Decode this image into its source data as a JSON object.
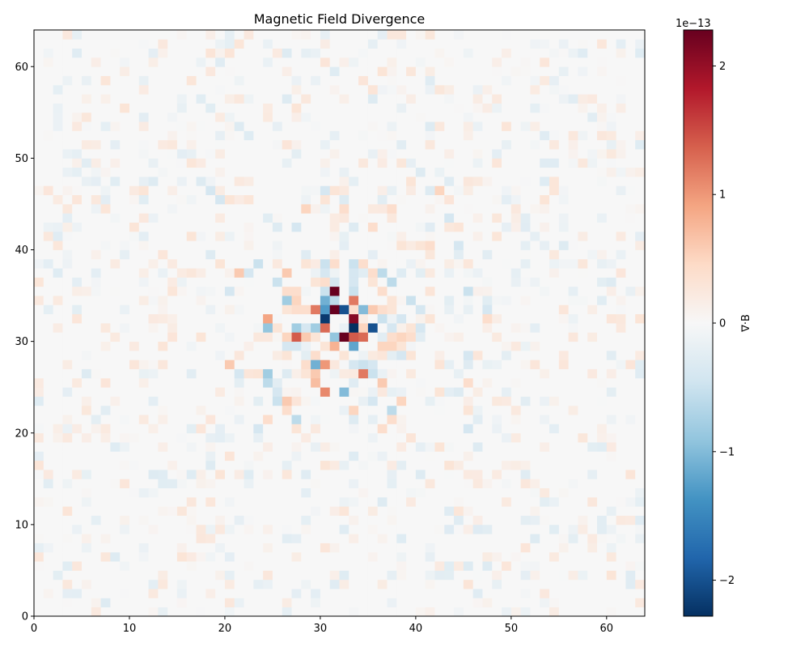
{
  "chart_data": {
    "type": "heatmap",
    "title": "Magnetic Field Divergence",
    "xlabel": "",
    "ylabel": "",
    "xlim": [
      0,
      64
    ],
    "ylim": [
      0,
      64
    ],
    "xticks": [
      0,
      10,
      20,
      30,
      40,
      50,
      60
    ],
    "yticks": [
      0,
      10,
      20,
      30,
      40,
      50,
      60
    ],
    "grid_size": [
      64,
      64
    ],
    "colormap": "RdBu_r",
    "colors": {
      "low": "#053061",
      "mid": "#f7f7f7",
      "high": "#67001f"
    },
    "colorbar": {
      "label": "∇·B",
      "offset_text": "1e−13",
      "min": -2.28,
      "max": 2.28,
      "ticks": [
        -2,
        -1,
        0,
        1,
        2
      ],
      "tick_labels": [
        "−2",
        "−1",
        "0",
        "1",
        "2"
      ],
      "scale": 1e-13
    },
    "background_noise": 0.3,
    "cells": [
      {
        "x": 31,
        "y": 35,
        "v": 2.3
      },
      {
        "x": 30,
        "y": 35,
        "v": -0.5
      },
      {
        "x": 30,
        "y": 34,
        "v": -1.1
      },
      {
        "x": 31,
        "y": 34,
        "v": -0.6
      },
      {
        "x": 30,
        "y": 33,
        "v": -1.3
      },
      {
        "x": 31,
        "y": 33,
        "v": 2.3
      },
      {
        "x": 32,
        "y": 33,
        "v": -2.0
      },
      {
        "x": 29,
        "y": 33,
        "v": 1.2
      },
      {
        "x": 28,
        "y": 33,
        "v": 0.4
      },
      {
        "x": 30,
        "y": 32,
        "v": -2.2
      },
      {
        "x": 33,
        "y": 32,
        "v": 2.1
      },
      {
        "x": 33,
        "y": 31,
        "v": -2.3
      },
      {
        "x": 30,
        "y": 31,
        "v": 1.3
      },
      {
        "x": 29,
        "y": 31,
        "v": -0.8
      },
      {
        "x": 34,
        "y": 31,
        "v": 0.5
      },
      {
        "x": 35,
        "y": 31,
        "v": -2.0
      },
      {
        "x": 32,
        "y": 30,
        "v": 2.3
      },
      {
        "x": 33,
        "y": 30,
        "v": 1.4
      },
      {
        "x": 34,
        "y": 30,
        "v": 1.3
      },
      {
        "x": 31,
        "y": 30,
        "v": -0.9
      },
      {
        "x": 33,
        "y": 29,
        "v": -1.2
      },
      {
        "x": 31,
        "y": 29,
        "v": 0.8
      },
      {
        "x": 33,
        "y": 34,
        "v": 1.2
      },
      {
        "x": 34,
        "y": 33,
        "v": -1.0
      },
      {
        "x": 35,
        "y": 33,
        "v": 0.6
      },
      {
        "x": 36,
        "y": 33,
        "v": 0.4
      },
      {
        "x": 37,
        "y": 33,
        "v": 0.3
      },
      {
        "x": 33,
        "y": 33,
        "v": 0.4
      },
      {
        "x": 33,
        "y": 35,
        "v": -0.5
      },
      {
        "x": 28,
        "y": 30,
        "v": 0.6
      },
      {
        "x": 27,
        "y": 30,
        "v": 1.4
      },
      {
        "x": 26,
        "y": 30,
        "v": 0.5
      },
      {
        "x": 27,
        "y": 31,
        "v": -0.8
      },
      {
        "x": 28,
        "y": 31,
        "v": -0.4
      },
      {
        "x": 29,
        "y": 30,
        "v": 0.3
      },
      {
        "x": 24,
        "y": 31,
        "v": -0.9
      },
      {
        "x": 25,
        "y": 31,
        "v": 0.3
      },
      {
        "x": 24,
        "y": 32,
        "v": 0.9
      },
      {
        "x": 26,
        "y": 34,
        "v": -0.8
      },
      {
        "x": 27,
        "y": 34,
        "v": 0.5
      },
      {
        "x": 26,
        "y": 35,
        "v": 0.4
      },
      {
        "x": 27,
        "y": 35,
        "v": 0.4
      },
      {
        "x": 25,
        "y": 36,
        "v": -0.5
      },
      {
        "x": 26,
        "y": 33,
        "v": 0.3
      },
      {
        "x": 27,
        "y": 33,
        "v": 0.4
      },
      {
        "x": 23,
        "y": 38,
        "v": -0.5
      },
      {
        "x": 21,
        "y": 37,
        "v": 0.6
      },
      {
        "x": 22,
        "y": 37,
        "v": -0.4
      },
      {
        "x": 26,
        "y": 37,
        "v": 0.6
      },
      {
        "x": 26,
        "y": 29,
        "v": -0.4
      },
      {
        "x": 27,
        "y": 29,
        "v": -0.4
      },
      {
        "x": 26,
        "y": 28,
        "v": 0.3
      },
      {
        "x": 29,
        "y": 28,
        "v": 0.4
      },
      {
        "x": 30,
        "y": 29,
        "v": 0.3
      },
      {
        "x": 29,
        "y": 27,
        "v": -1.1
      },
      {
        "x": 30,
        "y": 27,
        "v": 1.0
      },
      {
        "x": 28,
        "y": 27,
        "v": 0.4
      },
      {
        "x": 29,
        "y": 26,
        "v": 0.6
      },
      {
        "x": 28,
        "y": 26,
        "v": 0.3
      },
      {
        "x": 29,
        "y": 25,
        "v": 0.7
      },
      {
        "x": 30,
        "y": 24,
        "v": 1.1
      },
      {
        "x": 32,
        "y": 24,
        "v": -1.0
      },
      {
        "x": 34,
        "y": 26,
        "v": 1.2
      },
      {
        "x": 35,
        "y": 26,
        "v": -0.5
      },
      {
        "x": 34,
        "y": 27,
        "v": -0.5
      },
      {
        "x": 35,
        "y": 27,
        "v": -0.4
      },
      {
        "x": 36,
        "y": 25,
        "v": 0.6
      },
      {
        "x": 33,
        "y": 27,
        "v": -0.4
      },
      {
        "x": 32,
        "y": 28,
        "v": 0.3
      },
      {
        "x": 24,
        "y": 26,
        "v": -0.8
      },
      {
        "x": 24,
        "y": 25,
        "v": -0.6
      },
      {
        "x": 23,
        "y": 26,
        "v": 0.3
      },
      {
        "x": 25,
        "y": 24,
        "v": -0.4
      },
      {
        "x": 26,
        "y": 23,
        "v": 0.6
      },
      {
        "x": 25,
        "y": 23,
        "v": -0.5
      },
      {
        "x": 20,
        "y": 27,
        "v": 0.6
      },
      {
        "x": 21,
        "y": 26,
        "v": -0.4
      },
      {
        "x": 27,
        "y": 21,
        "v": -0.6
      },
      {
        "x": 26,
        "y": 22,
        "v": 0.4
      },
      {
        "x": 24,
        "y": 21,
        "v": 0.4
      },
      {
        "x": 23,
        "y": 20,
        "v": -0.4
      },
      {
        "x": 27,
        "y": 20,
        "v": 0.3
      },
      {
        "x": 33,
        "y": 22,
        "v": 0.5
      },
      {
        "x": 35,
        "y": 23,
        "v": -0.4
      },
      {
        "x": 37,
        "y": 22,
        "v": -0.6
      },
      {
        "x": 37,
        "y": 21,
        "v": 0.4
      },
      {
        "x": 38,
        "y": 23,
        "v": 0.5
      },
      {
        "x": 36,
        "y": 20,
        "v": 0.4
      },
      {
        "x": 33,
        "y": 21,
        "v": -0.3
      },
      {
        "x": 36,
        "y": 29,
        "v": 0.5
      },
      {
        "x": 37,
        "y": 29,
        "v": 0.5
      },
      {
        "x": 38,
        "y": 29,
        "v": 0.3
      },
      {
        "x": 37,
        "y": 30,
        "v": 0.4
      },
      {
        "x": 38,
        "y": 30,
        "v": 0.5
      },
      {
        "x": 39,
        "y": 30,
        "v": 0.4
      },
      {
        "x": 37,
        "y": 31,
        "v": -0.4
      },
      {
        "x": 36,
        "y": 32,
        "v": -0.5
      },
      {
        "x": 38,
        "y": 32,
        "v": -0.4
      },
      {
        "x": 39,
        "y": 31,
        "v": 0.3
      },
      {
        "x": 40,
        "y": 31,
        "v": -0.4
      },
      {
        "x": 40,
        "y": 33,
        "v": -0.4
      },
      {
        "x": 39,
        "y": 34,
        "v": -0.5
      },
      {
        "x": 41,
        "y": 32,
        "v": 0.3
      },
      {
        "x": 37,
        "y": 36,
        "v": -0.6
      },
      {
        "x": 36,
        "y": 37,
        "v": -0.6
      },
      {
        "x": 37,
        "y": 34,
        "v": 0.3
      },
      {
        "x": 38,
        "y": 28,
        "v": -0.4
      },
      {
        "x": 39,
        "y": 28,
        "v": 0.3
      },
      {
        "x": 35,
        "y": 37,
        "v": 0.4
      },
      {
        "x": 33,
        "y": 37,
        "v": -0.4
      },
      {
        "x": 33,
        "y": 38,
        "v": -0.5
      },
      {
        "x": 34,
        "y": 38,
        "v": 0.4
      },
      {
        "x": 30,
        "y": 37,
        "v": -0.4
      },
      {
        "x": 30,
        "y": 38,
        "v": -0.5
      },
      {
        "x": 31,
        "y": 38,
        "v": 0.4
      },
      {
        "x": 31,
        "y": 36,
        "v": -0.4
      },
      {
        "x": 30,
        "y": 36,
        "v": 0.4
      },
      {
        "x": 33,
        "y": 36,
        "v": -0.4
      },
      {
        "x": 29,
        "y": 36,
        "v": 0.3
      },
      {
        "x": 36,
        "y": 35,
        "v": 0.4
      },
      {
        "x": 35,
        "y": 36,
        "v": 0.3
      },
      {
        "x": 28,
        "y": 38,
        "v": 0.3
      },
      {
        "x": 27,
        "y": 42,
        "v": -0.4
      },
      {
        "x": 28,
        "y": 44,
        "v": 0.5
      },
      {
        "x": 30,
        "y": 46,
        "v": -0.4
      },
      {
        "x": 31,
        "y": 46,
        "v": 0.3
      },
      {
        "x": 30,
        "y": 45,
        "v": 0.3
      },
      {
        "x": 32,
        "y": 44,
        "v": 0.4
      },
      {
        "x": 32,
        "y": 45,
        "v": -0.3
      },
      {
        "x": 33,
        "y": 42,
        "v": -0.3
      },
      {
        "x": 35,
        "y": 42,
        "v": 0.4
      },
      {
        "x": 37,
        "y": 44,
        "v": 0.4
      },
      {
        "x": 38,
        "y": 40,
        "v": 0.3
      },
      {
        "x": 41,
        "y": 40,
        "v": 0.4
      },
      {
        "x": 40,
        "y": 40,
        "v": 0.3
      },
      {
        "x": 43,
        "y": 43,
        "v": -0.4
      },
      {
        "x": 44,
        "y": 40,
        "v": -0.4
      },
      {
        "x": 42,
        "y": 46,
        "v": 0.5
      },
      {
        "x": 41,
        "y": 46,
        "v": -0.3
      },
      {
        "x": 39,
        "y": 47,
        "v": 0.3
      },
      {
        "x": 45,
        "y": 35,
        "v": -0.5
      },
      {
        "x": 47,
        "y": 33,
        "v": -0.4
      },
      {
        "x": 47,
        "y": 32,
        "v": 0.4
      },
      {
        "x": 45,
        "y": 28,
        "v": -0.4
      },
      {
        "x": 45,
        "y": 25,
        "v": 0.4
      },
      {
        "x": 44,
        "y": 24,
        "v": -0.3
      },
      {
        "x": 42,
        "y": 24,
        "v": 0.3
      },
      {
        "x": 45,
        "y": 22,
        "v": 0.3
      },
      {
        "x": 45,
        "y": 20,
        "v": -0.4
      },
      {
        "x": 42,
        "y": 18,
        "v": 0.3
      },
      {
        "x": 40,
        "y": 15,
        "v": -0.3
      },
      {
        "x": 30,
        "y": 16,
        "v": 0.3
      },
      {
        "x": 20,
        "y": 35,
        "v": -0.4
      },
      {
        "x": 19,
        "y": 38,
        "v": 0.3
      },
      {
        "x": 18,
        "y": 39,
        "v": -0.3
      },
      {
        "x": 19,
        "y": 45,
        "v": -0.4
      },
      {
        "x": 18,
        "y": 46,
        "v": -0.4
      },
      {
        "x": 20,
        "y": 45,
        "v": 0.3
      },
      {
        "x": 16,
        "y": 41,
        "v": 0.3
      },
      {
        "x": 17,
        "y": 30,
        "v": 0.3
      },
      {
        "x": 18,
        "y": 16,
        "v": -0.3
      },
      {
        "x": 19,
        "y": 15,
        "v": 0.3
      },
      {
        "x": 12,
        "y": 15,
        "v": -0.3
      },
      {
        "x": 11,
        "y": 46,
        "v": 0.3
      },
      {
        "x": 12,
        "y": 47,
        "v": -0.3
      },
      {
        "x": 9,
        "y": 55,
        "v": 0.3
      },
      {
        "x": 27,
        "y": 55,
        "v": 0.3
      },
      {
        "x": 21,
        "y": 53,
        "v": -0.3
      },
      {
        "x": 41,
        "y": 53,
        "v": -0.3
      },
      {
        "x": 53,
        "y": 45,
        "v": 0.3
      },
      {
        "x": 55,
        "y": 40,
        "v": -0.3
      },
      {
        "x": 60,
        "y": 36,
        "v": -0.3
      },
      {
        "x": 63,
        "y": 32,
        "v": 0.3
      },
      {
        "x": 47,
        "y": 5,
        "v": -0.3
      },
      {
        "x": 7,
        "y": 1,
        "v": -0.3
      },
      {
        "x": 15,
        "y": 6,
        "v": 0.3
      },
      {
        "x": 60,
        "y": 4,
        "v": 0.3
      }
    ]
  }
}
